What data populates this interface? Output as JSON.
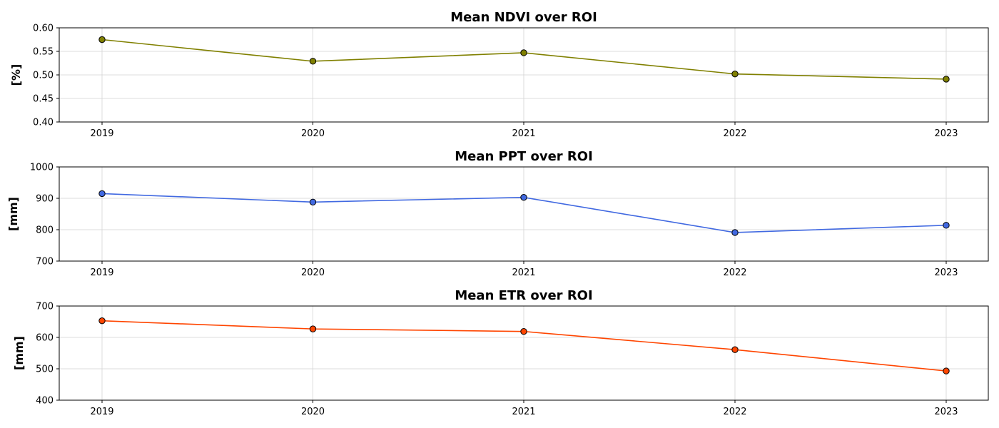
{
  "chart_data": [
    {
      "type": "line",
      "title": "Mean NDVI over ROI",
      "xlabel": "",
      "ylabel": "[%]",
      "x": [
        "2019",
        "2020",
        "2021",
        "2022",
        "2023"
      ],
      "series": [
        {
          "values": [
            0.575,
            0.529,
            0.547,
            0.502,
            0.491
          ],
          "color": "#808000"
        }
      ],
      "ylim": [
        0.4,
        0.6
      ],
      "yticks": [
        "0.40",
        "0.45",
        "0.50",
        "0.55",
        "0.60"
      ],
      "grid": true
    },
    {
      "type": "line",
      "title": "Mean PPT over ROI",
      "xlabel": "",
      "ylabel": "[mm]",
      "x": [
        "2019",
        "2020",
        "2021",
        "2022",
        "2023"
      ],
      "series": [
        {
          "values": [
            915,
            888,
            903,
            791,
            814
          ],
          "color": "#4169e1"
        }
      ],
      "ylim": [
        700,
        1000
      ],
      "yticks": [
        "700",
        "800",
        "900",
        "1000"
      ],
      "grid": true
    },
    {
      "type": "line",
      "title": "Mean ETR over ROI",
      "xlabel": "",
      "ylabel": "[mm]",
      "x": [
        "2019",
        "2020",
        "2021",
        "2022",
        "2023"
      ],
      "series": [
        {
          "values": [
            653,
            627,
            619,
            561,
            493
          ],
          "color": "#ff4500"
        }
      ],
      "ylim": [
        400,
        700
      ],
      "yticks": [
        "400",
        "500",
        "600",
        "700"
      ],
      "grid": true
    }
  ]
}
